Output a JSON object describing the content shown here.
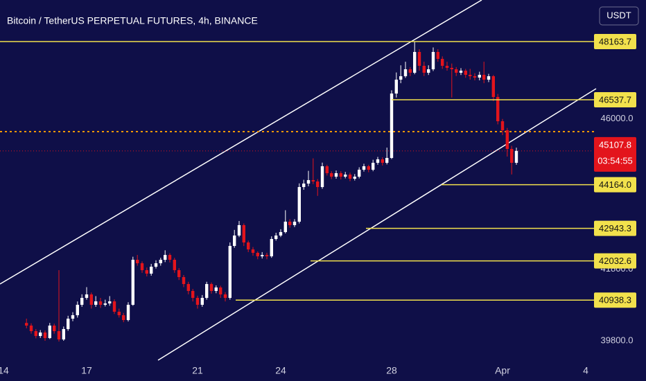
{
  "chart_data": {
    "type": "candlestick",
    "title": "Bitcoin / TetherUS PERPETUAL FUTURES, 4h, BINANCE",
    "currency_button": "USDT",
    "countdown": "03:54:55",
    "up_color": "#ffffff",
    "down_color": "#e3141c",
    "level_color": "#f2e14c",
    "alert_color": "#ff9800",
    "x": [
      14.83,
      15,
      15.17,
      15.33,
      15.5,
      15.67,
      15.83,
      16,
      16.17,
      16.33,
      16.5,
      16.67,
      16.83,
      17,
      17.17,
      17.33,
      17.5,
      17.67,
      17.83,
      18,
      18.17,
      18.33,
      18.5,
      18.67,
      18.83,
      19,
      19.17,
      19.33,
      19.5,
      19.67,
      19.83,
      20,
      20.17,
      20.33,
      20.5,
      20.67,
      20.83,
      21,
      21.17,
      21.33,
      21.5,
      21.67,
      21.83,
      22,
      22.17,
      22.33,
      22.5,
      22.67,
      22.83,
      23,
      23.17,
      23.33,
      23.5,
      23.67,
      23.83,
      24,
      24.17,
      24.33,
      24.5,
      24.67,
      24.83,
      25,
      25.17,
      25.33,
      25.5,
      25.67,
      25.83,
      26,
      26.17,
      26.33,
      26.5,
      26.67,
      26.83,
      27,
      27.17,
      27.33,
      27.5,
      27.67,
      27.83,
      28,
      28.17,
      28.33,
      28.5,
      28.67,
      28.83,
      29,
      29.17,
      29.33,
      29.5,
      29.67,
      29.83,
      30,
      30.17,
      30.33,
      30.5,
      30.67,
      30.83,
      31,
      31.17,
      31.33,
      31.5,
      31.67,
      31.83,
      32,
      32.17,
      32.33,
      32.5
    ],
    "open": [
      40300,
      40226,
      40071,
      39935,
      40032,
      39877,
      40226,
      40071,
      39839,
      40129,
      40419,
      40516,
      40807,
      41000,
      41097,
      40807,
      40903,
      40807,
      40845,
      40903,
      40613,
      40516,
      40381,
      40807,
      42065,
      41968,
      41775,
      41678,
      41871,
      41968,
      42065,
      42200,
      42065,
      41775,
      41581,
      41387,
      41194,
      41000,
      40807,
      41000,
      41387,
      41194,
      41291,
      41097,
      41000,
      42452,
      42743,
      43033,
      42549,
      42355,
      42259,
      42162,
      42200,
      42162,
      42646,
      42743,
      42839,
      43130,
      43033,
      43130,
      44098,
      44195,
      44291,
      44253,
      44098,
      44679,
      44485,
      44388,
      44485,
      44388,
      44446,
      44330,
      44388,
      44582,
      44679,
      44582,
      44775,
      44872,
      44775,
      44911,
      46711,
      47099,
      47195,
      47389,
      47292,
      47873,
      47486,
      47292,
      47389,
      47873,
      47679,
      47486,
      47428,
      47389,
      47292,
      47350,
      47234,
      47195,
      47157,
      47234,
      47099,
      47195,
      46615,
      45937,
      45685,
      45163,
      44775
    ],
    "high": [
      40420,
      40290,
      40130,
      40100,
      40090,
      40300,
      40280,
      41775,
      40200,
      40500,
      40600,
      40900,
      41100,
      41300,
      41150,
      41050,
      41000,
      40950,
      41050,
      40960,
      40700,
      40580,
      40880,
      42150,
      42200,
      42020,
      41850,
      41950,
      42050,
      42120,
      42330,
      42250,
      42120,
      41830,
      41640,
      41450,
      41250,
      41060,
      41080,
      41450,
      41430,
      41350,
      41340,
      41160,
      42550,
      42900,
      43150,
      43080,
      42600,
      42420,
      42300,
      42280,
      42260,
      42720,
      42820,
      42920,
      43450,
      43200,
      43200,
      44200,
      44300,
      44550,
      44900,
      44320,
      44780,
      44720,
      44540,
      44560,
      44540,
      44520,
      44500,
      44460,
      44650,
      44750,
      44720,
      44860,
      44940,
      44930,
      45200,
      46800,
      47300,
      47500,
      47600,
      47450,
      48163.7,
      47950,
      47600,
      47500,
      48000,
      47950,
      47750,
      47600,
      47550,
      47450,
      47420,
      47400,
      47400,
      47280,
      47320,
      47600,
      47260,
      47230,
      46700,
      46000,
      45750,
      45250,
      45200
    ],
    "low": [
      40150,
      40000,
      39870,
      39880,
      39800,
      39850,
      40000,
      39780,
      39800,
      40080,
      40350,
      40450,
      40750,
      40950,
      40700,
      40750,
      40720,
      40760,
      40780,
      40550,
      40450,
      40320,
      40340,
      40780,
      41900,
      41700,
      41600,
      41620,
      41820,
      41900,
      42000,
      41990,
      41700,
      41500,
      41300,
      41100,
      40900,
      40700,
      40750,
      40950,
      41120,
      41130,
      41000,
      40900,
      40950,
      42400,
      42700,
      42450,
      42280,
      42180,
      42080,
      42100,
      42080,
      42120,
      42600,
      42700,
      42800,
      42960,
      42980,
      43080,
      44020,
      44120,
      44180,
      43850,
      44050,
      44420,
      44320,
      44330,
      44310,
      44340,
      44260,
      44280,
      44340,
      44530,
      44510,
      44540,
      44720,
      44700,
      44730,
      44880,
      46600,
      47000,
      47150,
      47200,
      47250,
      47350,
      47200,
      47230,
      47340,
      47600,
      47400,
      47350,
      46600,
      47200,
      47230,
      47150,
      47100,
      47080,
      47080,
      47000,
      47030,
      46500,
      45850,
      45550,
      44950,
      44450,
      44720
    ],
    "close": [
      40226,
      40071,
      39935,
      40032,
      39877,
      40226,
      40071,
      39839,
      40129,
      40419,
      40516,
      40807,
      41000,
      41097,
      40807,
      40903,
      40807,
      40845,
      40903,
      40613,
      40516,
      40381,
      40807,
      42065,
      41968,
      41775,
      41678,
      41871,
      41968,
      42065,
      42200,
      42065,
      41775,
      41581,
      41387,
      41194,
      41000,
      40807,
      41000,
      41387,
      41194,
      41291,
      41097,
      41000,
      42452,
      42743,
      43033,
      42549,
      42355,
      42259,
      42162,
      42200,
      42162,
      42646,
      42743,
      42839,
      43130,
      43033,
      43130,
      44098,
      44195,
      44291,
      44253,
      44098,
      44679,
      44485,
      44388,
      44485,
      44388,
      44446,
      44330,
      44388,
      44582,
      44679,
      44582,
      44775,
      44872,
      44775,
      44911,
      46711,
      47099,
      47195,
      47389,
      47292,
      47873,
      47486,
      47292,
      47389,
      47873,
      47679,
      47486,
      47428,
      47389,
      47292,
      47350,
      47234,
      47195,
      47157,
      47234,
      47099,
      47195,
      46615,
      45937,
      45685,
      45163,
      44775,
      45107.8
    ],
    "xlim": [
      13.875,
      35.25
    ],
    "xticks": [
      14,
      17,
      21,
      24,
      28,
      {
        "value": 32,
        "label": "Apr"
      },
      {
        "value": 35,
        "label": "4"
      }
    ],
    "ylim": [
      39258,
      49325
    ],
    "yticks": [
      {
        "value": 46000,
        "label": "46000.0"
      },
      {
        "value": 41800,
        "label": "41800.0"
      },
      {
        "value": 39800,
        "label": "39800.0"
      }
    ],
    "levels": [
      {
        "value": 48163.7,
        "start": 13.875
      },
      {
        "value": 46537.7,
        "start": 28
      },
      {
        "value": 44164,
        "label": "44164.0",
        "start": 29.8
      },
      {
        "value": 42943.3,
        "start": 27.075
      },
      {
        "value": 42032.6,
        "start": 25.075
      },
      {
        "value": 40938.3,
        "start": 22.375
      }
    ],
    "alert_level": 45647
  }
}
